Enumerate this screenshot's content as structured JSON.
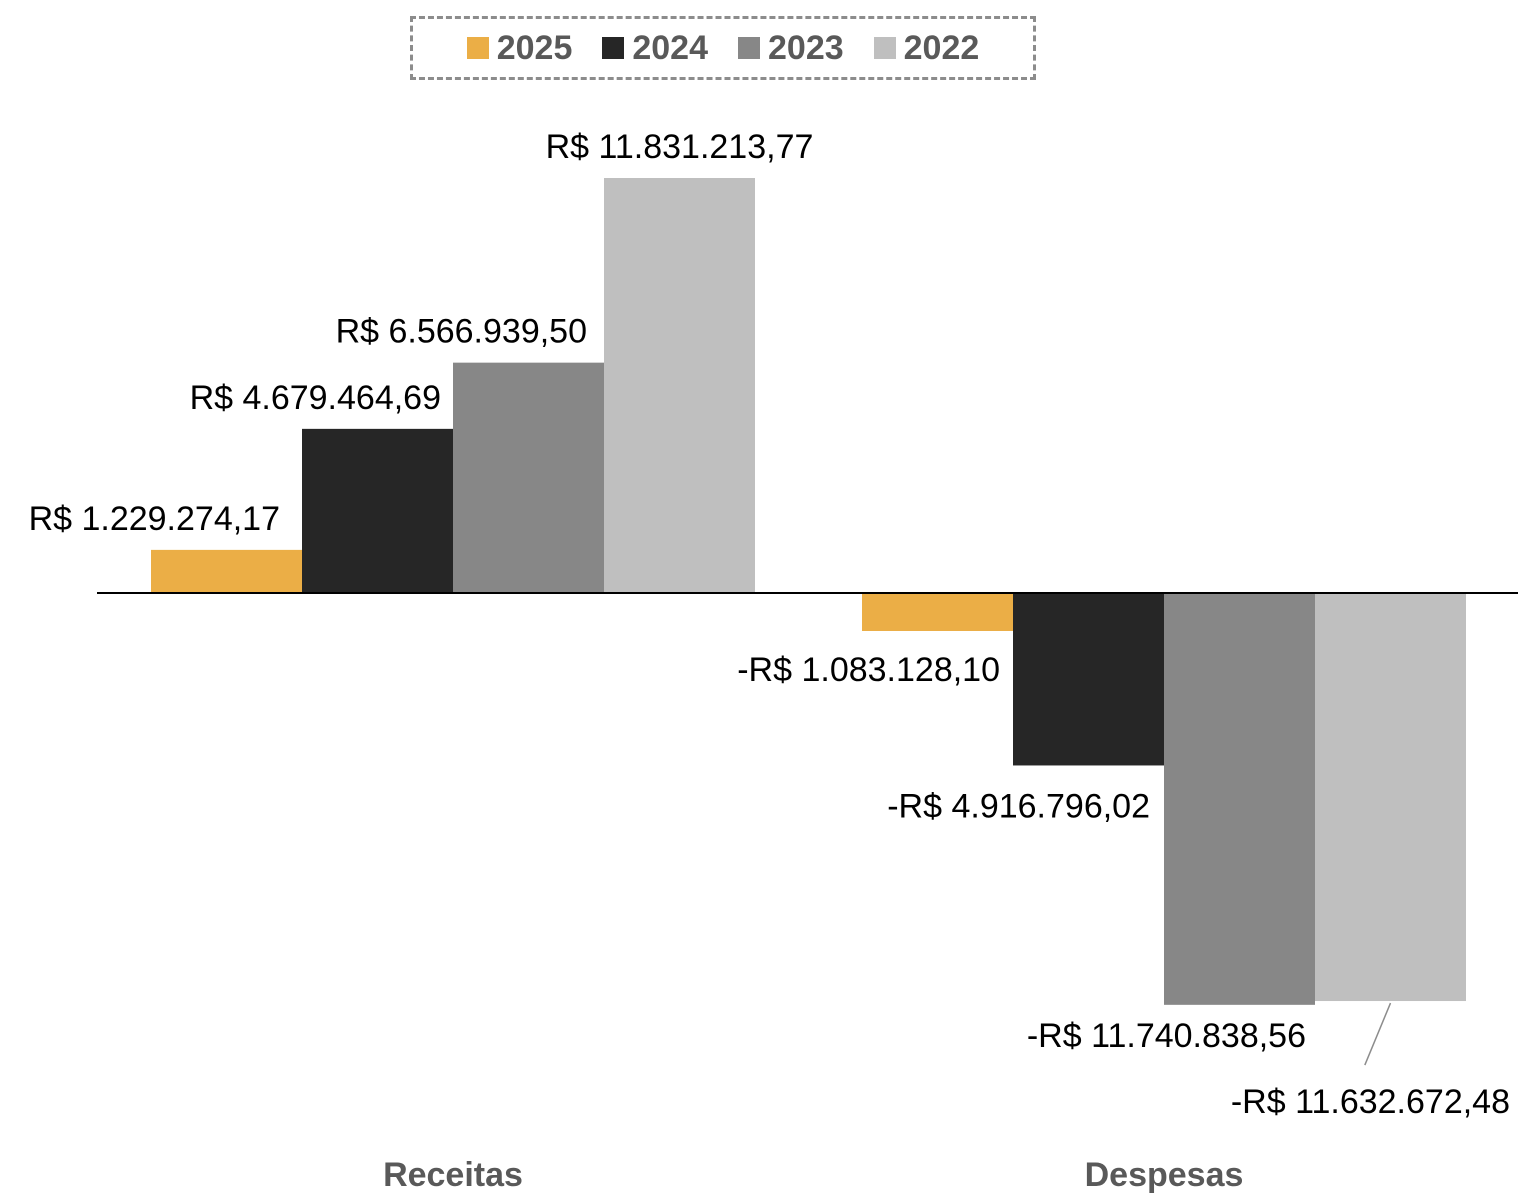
{
  "chart_data": {
    "type": "bar",
    "categories": [
      "Receitas",
      "Despesas"
    ],
    "series": [
      {
        "name": "2025",
        "color": "#EBAE46",
        "values": [
          1229274.17,
          -1083128.1
        ],
        "labels": [
          "R$ 1.229.274,17",
          "-R$ 1.083.128,10"
        ]
      },
      {
        "name": "2024",
        "color": "#262626",
        "values": [
          4679464.69,
          -4916796.02
        ],
        "labels": [
          "R$ 4.679.464,69",
          "-R$ 4.916.796,02"
        ]
      },
      {
        "name": "2023",
        "color": "#878787",
        "values": [
          6566939.5,
          -11740838.56
        ],
        "labels": [
          "R$ 6.566.939,50",
          "-R$ 11.740.838,56"
        ]
      },
      {
        "name": "2022",
        "color": "#BFBFBF",
        "values": [
          11831213.77,
          -11632672.48
        ],
        "labels": [
          "R$ 11.831.213,77",
          "-R$ 11.632.672,48"
        ]
      }
    ],
    "ylim": [
      -12000000,
      12000000
    ],
    "grid": false,
    "legend": "top-center"
  }
}
